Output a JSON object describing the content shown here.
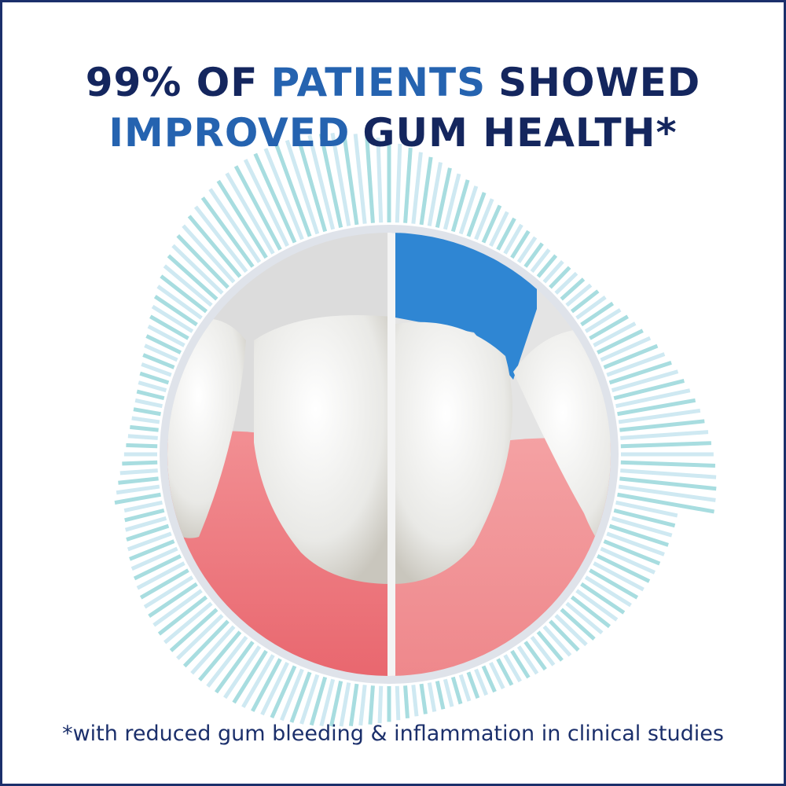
{
  "headline": {
    "line1": [
      "99% OF",
      "PATIENTS",
      "SHOWED"
    ],
    "line2": [
      "IMPROVED",
      "GUM HEALTH*"
    ]
  },
  "footnote": "*with reduced gum bleeding & inflammation in clinical studies"
}
